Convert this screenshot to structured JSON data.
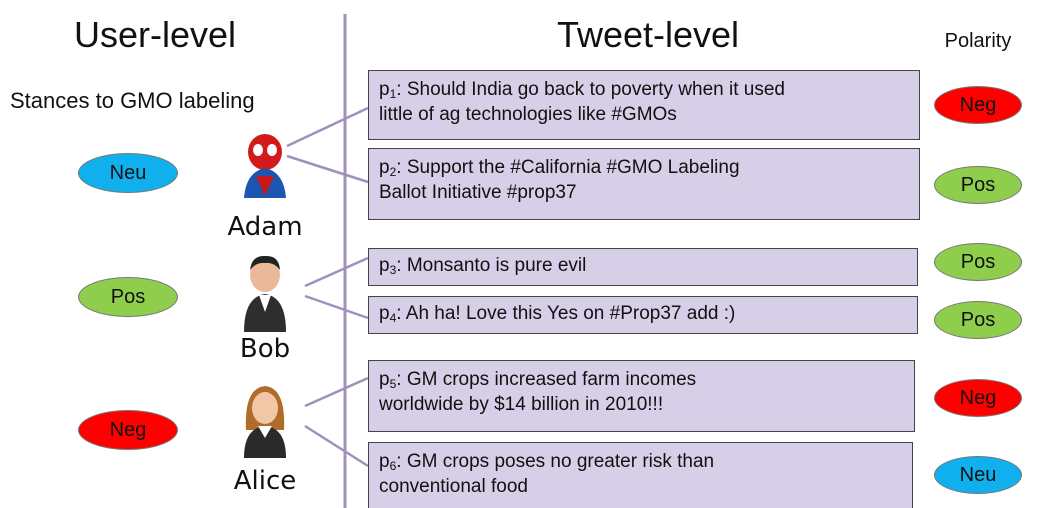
{
  "header": {
    "left": "User-level",
    "middle": "Tweet-level",
    "right": "Polarity"
  },
  "stance_caption": "Stances to GMO labeling",
  "users": [
    {
      "name": "Adam",
      "stance": "Neu"
    },
    {
      "name": "Bob",
      "stance": "Pos"
    },
    {
      "name": "Alice",
      "stance": "Neg"
    }
  ],
  "tweets": [
    {
      "prefix": "p",
      "index": "1",
      "lines": [
        ": Should India go back to poverty when it used",
        "little of ag technologies like #GMOs"
      ],
      "polarity": "Neg"
    },
    {
      "prefix": "p",
      "index": "2",
      "lines": [
        ": Support the #California #GMO Labeling",
        "Ballot Initiative #prop37"
      ],
      "polarity": "Pos"
    },
    {
      "prefix": "p",
      "index": "3",
      "lines": [
        ": Monsanto is pure evil"
      ],
      "polarity": "Pos"
    },
    {
      "prefix": "p",
      "index": "4",
      "lines": [
        ": Ah ha! Love this Yes on #Prop37 add :)"
      ],
      "polarity": "Pos"
    },
    {
      "prefix": "p",
      "index": "5",
      "lines": [
        ": GM crops increased farm incomes",
        "worldwide by $14 billion in 2010!!!"
      ],
      "polarity": "Neg"
    },
    {
      "prefix": "p",
      "index": "6",
      "lines": [
        ": GM crops poses no greater risk than",
        "conventional food"
      ],
      "polarity": "Neu"
    }
  ]
}
